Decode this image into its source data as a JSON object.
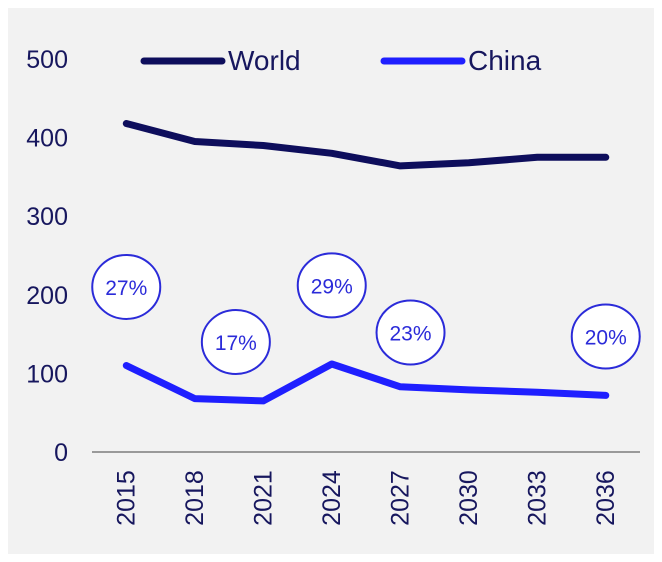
{
  "chart_data": {
    "type": "line",
    "x": [
      "2015",
      "2018",
      "2021",
      "2024",
      "2027",
      "2030",
      "2033",
      "2036"
    ],
    "ylim": [
      0,
      500
    ],
    "yticks": [
      "0",
      "100",
      "200",
      "300",
      "400",
      "500"
    ],
    "legend_position": "top",
    "grid": false,
    "series": [
      {
        "name": "World",
        "color": "#0e0e5c",
        "values": [
          418,
          395,
          390,
          380,
          364,
          368,
          375,
          375
        ]
      },
      {
        "name": "China",
        "color": "#1f1fff",
        "values": [
          110,
          68,
          65,
          112,
          83,
          79,
          76,
          72
        ]
      }
    ],
    "annotations": [
      {
        "text": "27%",
        "x_index": 0,
        "y": 210
      },
      {
        "text": "17%",
        "x_index": 1.6,
        "y": 140
      },
      {
        "text": "29%",
        "x_index": 3,
        "y": 212
      },
      {
        "text": "23%",
        "x_index": 4.15,
        "y": 152
      },
      {
        "text": "20%",
        "x_index": 7,
        "y": 147
      }
    ]
  }
}
